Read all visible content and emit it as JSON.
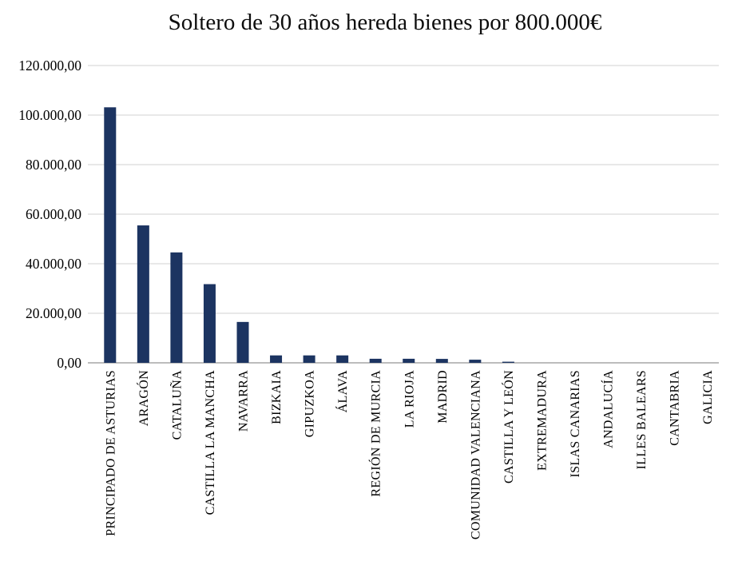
{
  "chart_data": {
    "type": "bar",
    "title": "Soltero de 30 años hereda bienes por 800.000€",
    "xlabel": "",
    "ylabel": "",
    "categories": [
      "PRINCIPADO DE ASTURIAS",
      "ARAGÓN",
      "CATALUÑA",
      "CASTILLA LA MANCHA",
      "NAVARRA",
      "BIZKAIA",
      "GIPUZKOA",
      "ÁLAVA",
      "REGIÓN DE MURCIA",
      "LA RIOJA",
      "MADRID",
      "COMUNIDAD VALENCIANA",
      "CASTILLA Y LEÓN",
      "EXTREMADURA",
      "ISLAS CANARIAS",
      "ANDALUCÍA",
      "ILLES BALEARS",
      "CANTABRIA",
      "GALICIA"
    ],
    "values": [
      103135,
      55467,
      44569,
      31759,
      16500,
      3000,
      3000,
      3000,
      1640,
      1640,
      1586,
      1265,
      450,
      0,
      0,
      0,
      0,
      0,
      0
    ],
    "ylim": [
      0,
      120000
    ],
    "y_ticks": [
      {
        "value": 120000,
        "label": "120.000,00"
      },
      {
        "value": 100000,
        "label": "100.000,00"
      },
      {
        "value": 80000,
        "label": "80.000,00"
      },
      {
        "value": 60000,
        "label": "60.000,00"
      },
      {
        "value": 40000,
        "label": "40.000,00"
      },
      {
        "value": 20000,
        "label": "20.000,00"
      },
      {
        "value": 0,
        "label": "0,00"
      }
    ],
    "grid": true,
    "legend": false,
    "bar_color": "#1c3461",
    "gridline_color": "#d9d9d9",
    "axis_line_color": "#a6a6a6",
    "text_color": "#000000"
  }
}
